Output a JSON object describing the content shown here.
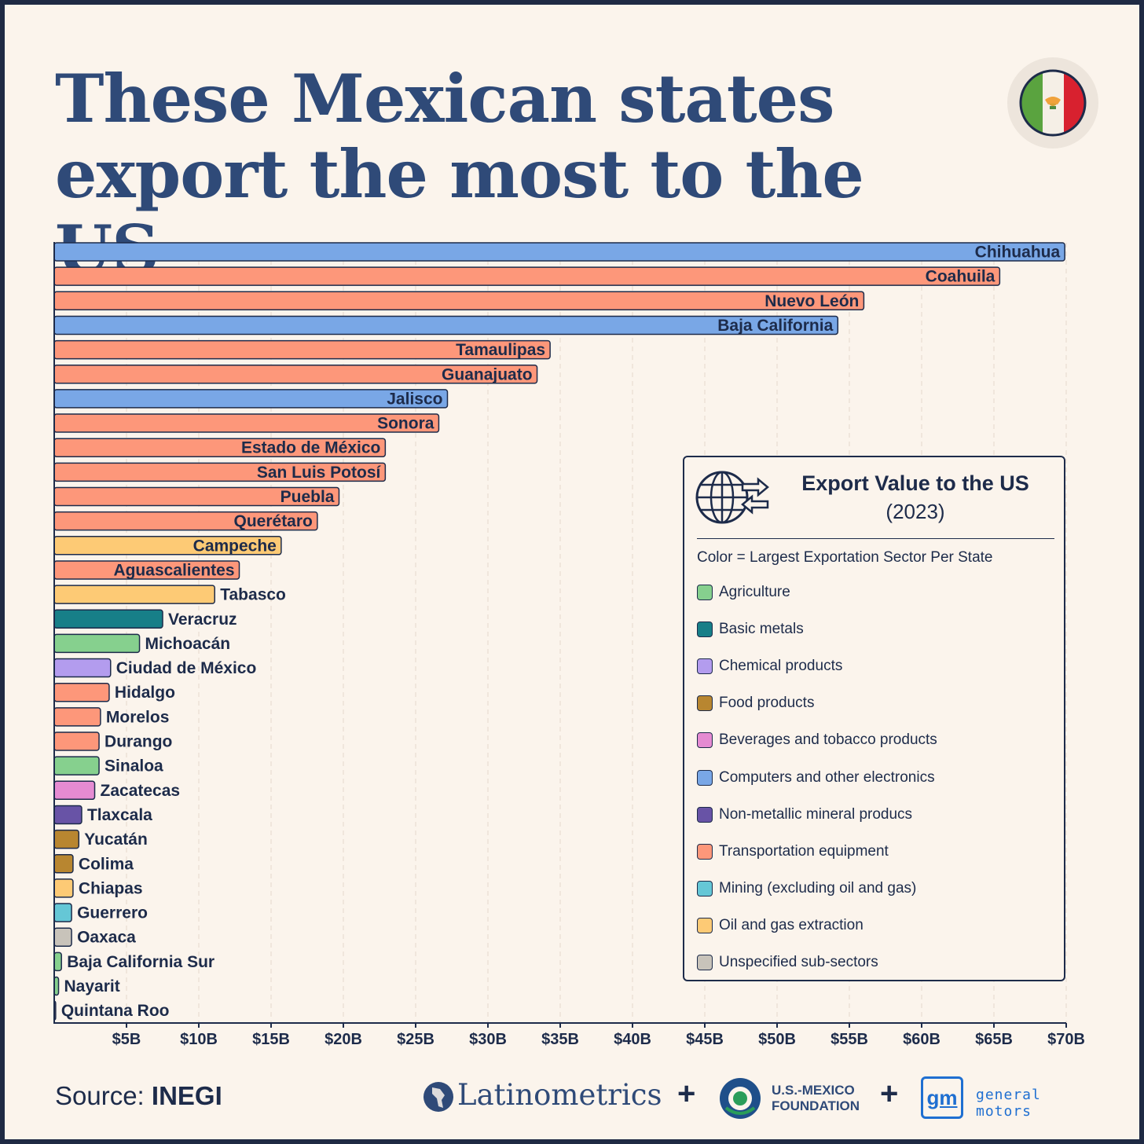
{
  "title": {
    "line1": "These Mexican states",
    "line2": "export the most to the US"
  },
  "legend": {
    "title": "Export Value to the US",
    "subtitle": "(2023)",
    "note": "Color = Largest Exportation Sector Per State",
    "items": [
      {
        "label": "Agriculture",
        "color": "#86d08e"
      },
      {
        "label": "Basic metals",
        "color": "#177f88"
      },
      {
        "label": "Chemical products",
        "color": "#b39cee"
      },
      {
        "label": "Food products",
        "color": "#b88630"
      },
      {
        "label": "Beverages and tobacco products",
        "color": "#e58bd2"
      },
      {
        "label": "Computers and other electronics",
        "color": "#79a7e6"
      },
      {
        "label": "Non-metallic mineral producs",
        "color": "#6853a6"
      },
      {
        "label": "Transportation equipment",
        "color": "#fd977a"
      },
      {
        "label": "Mining (excluding oil and gas)",
        "color": "#65c7d6"
      },
      {
        "label": "Oil and gas extraction",
        "color": "#fdca75"
      },
      {
        "label": "Unspecified sub-sectors",
        "color": "#c8c3ba"
      }
    ]
  },
  "source": {
    "prefix": "Source:",
    "name": "INEGI"
  },
  "logos": {
    "latinometrics": "Latinometrics",
    "usmf_line1": "U.S.-MEXICO",
    "usmf_line2": "FOUNDATION",
    "gm_mark": "gm",
    "gm_text": "general motors"
  },
  "chart_data": {
    "type": "bar",
    "orientation": "horizontal",
    "unit": "USD billions",
    "xlim": [
      0,
      70
    ],
    "xticks": [
      5,
      10,
      15,
      20,
      25,
      30,
      35,
      40,
      45,
      50,
      55,
      60,
      65,
      70
    ],
    "xtick_labels": [
      "$5B",
      "$10B",
      "$15B",
      "$20B",
      "$25B",
      "$30B",
      "$35B",
      "$40B",
      "$45B",
      "$50B",
      "$55B",
      "$60B",
      "$65B",
      "$70B"
    ],
    "bars": [
      {
        "state": "Chihuahua",
        "value": 69.9,
        "sector": "Computers and other electronics"
      },
      {
        "state": "Coahuila",
        "value": 65.4,
        "sector": "Transportation equipment"
      },
      {
        "state": "Nuevo León",
        "value": 56.0,
        "sector": "Transportation equipment"
      },
      {
        "state": "Baja California",
        "value": 54.2,
        "sector": "Computers and other electronics"
      },
      {
        "state": "Tamaulipas",
        "value": 34.3,
        "sector": "Transportation equipment"
      },
      {
        "state": "Guanajuato",
        "value": 33.4,
        "sector": "Transportation equipment"
      },
      {
        "state": "Jalisco",
        "value": 27.2,
        "sector": "Computers and other electronics"
      },
      {
        "state": "Sonora",
        "value": 26.6,
        "sector": "Transportation equipment"
      },
      {
        "state": "Estado de México",
        "value": 22.9,
        "sector": "Transportation equipment"
      },
      {
        "state": "San Luis Potosí",
        "value": 22.9,
        "sector": "Transportation equipment"
      },
      {
        "state": "Puebla",
        "value": 19.7,
        "sector": "Transportation equipment"
      },
      {
        "state": "Querétaro",
        "value": 18.2,
        "sector": "Transportation equipment"
      },
      {
        "state": "Campeche",
        "value": 15.7,
        "sector": "Oil and gas extraction"
      },
      {
        "state": "Aguascalientes",
        "value": 12.8,
        "sector": "Transportation equipment"
      },
      {
        "state": "Tabasco",
        "value": 11.1,
        "sector": "Oil and gas extraction"
      },
      {
        "state": "Veracruz",
        "value": 7.5,
        "sector": "Basic metals"
      },
      {
        "state": "Michoacán",
        "value": 5.9,
        "sector": "Agriculture"
      },
      {
        "state": "Ciudad de México",
        "value": 3.9,
        "sector": "Chemical products"
      },
      {
        "state": "Hidalgo",
        "value": 3.8,
        "sector": "Transportation equipment"
      },
      {
        "state": "Morelos",
        "value": 3.2,
        "sector": "Transportation equipment"
      },
      {
        "state": "Durango",
        "value": 3.1,
        "sector": "Transportation equipment"
      },
      {
        "state": "Sinaloa",
        "value": 3.1,
        "sector": "Agriculture"
      },
      {
        "state": "Zacatecas",
        "value": 2.8,
        "sector": "Beverages and tobacco products"
      },
      {
        "state": "Tlaxcala",
        "value": 1.9,
        "sector": "Non-metallic mineral producs"
      },
      {
        "state": "Yucatán",
        "value": 1.7,
        "sector": "Food products"
      },
      {
        "state": "Colima",
        "value": 1.3,
        "sector": "Food products"
      },
      {
        "state": "Chiapas",
        "value": 1.3,
        "sector": "Oil and gas extraction"
      },
      {
        "state": "Guerrero",
        "value": 1.2,
        "sector": "Mining (excluding oil and gas)"
      },
      {
        "state": "Oaxaca",
        "value": 1.2,
        "sector": "Unspecified sub-sectors"
      },
      {
        "state": "Baja California Sur",
        "value": 0.5,
        "sector": "Agriculture"
      },
      {
        "state": "Nayarit",
        "value": 0.3,
        "sector": "Agriculture"
      },
      {
        "state": "Quintana Roo",
        "value": 0.1,
        "sector": "Transportation equipment"
      }
    ],
    "grid": "vertical dashed",
    "legend_position": "bottom-right"
  }
}
